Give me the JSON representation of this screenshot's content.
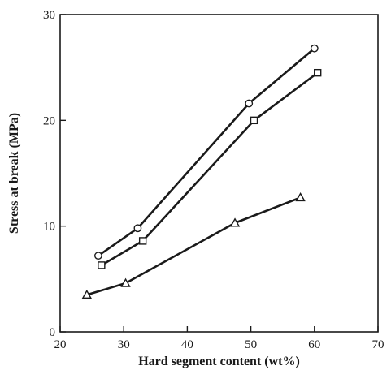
{
  "chart_data": {
    "type": "line",
    "title": "",
    "xlabel": "Hard segment content (wt%)",
    "ylabel": "Stress at break (MPa)",
    "xlim": [
      20,
      70
    ],
    "ylim": [
      0,
      30
    ],
    "x_ticks": [
      "20",
      "30",
      "40",
      "50",
      "60",
      "70"
    ],
    "y_ticks": [
      "0",
      "10",
      "20",
      "30"
    ],
    "grid": false,
    "legend": "none",
    "series": [
      {
        "marker": "circle",
        "color": "#1a1a1a",
        "x": [
          26,
          32.2,
          49.7,
          60
        ],
        "y": [
          7.2,
          9.8,
          21.6,
          26.8
        ]
      },
      {
        "marker": "square",
        "color": "#1a1a1a",
        "x": [
          26.5,
          33,
          50.5,
          60.5
        ],
        "y": [
          6.3,
          8.6,
          20,
          24.5
        ]
      },
      {
        "marker": "triangle",
        "color": "#1a1a1a",
        "x": [
          24.2,
          30.3,
          47.5,
          57.8
        ],
        "y": [
          3.5,
          4.6,
          10.3,
          12.7
        ]
      }
    ]
  }
}
